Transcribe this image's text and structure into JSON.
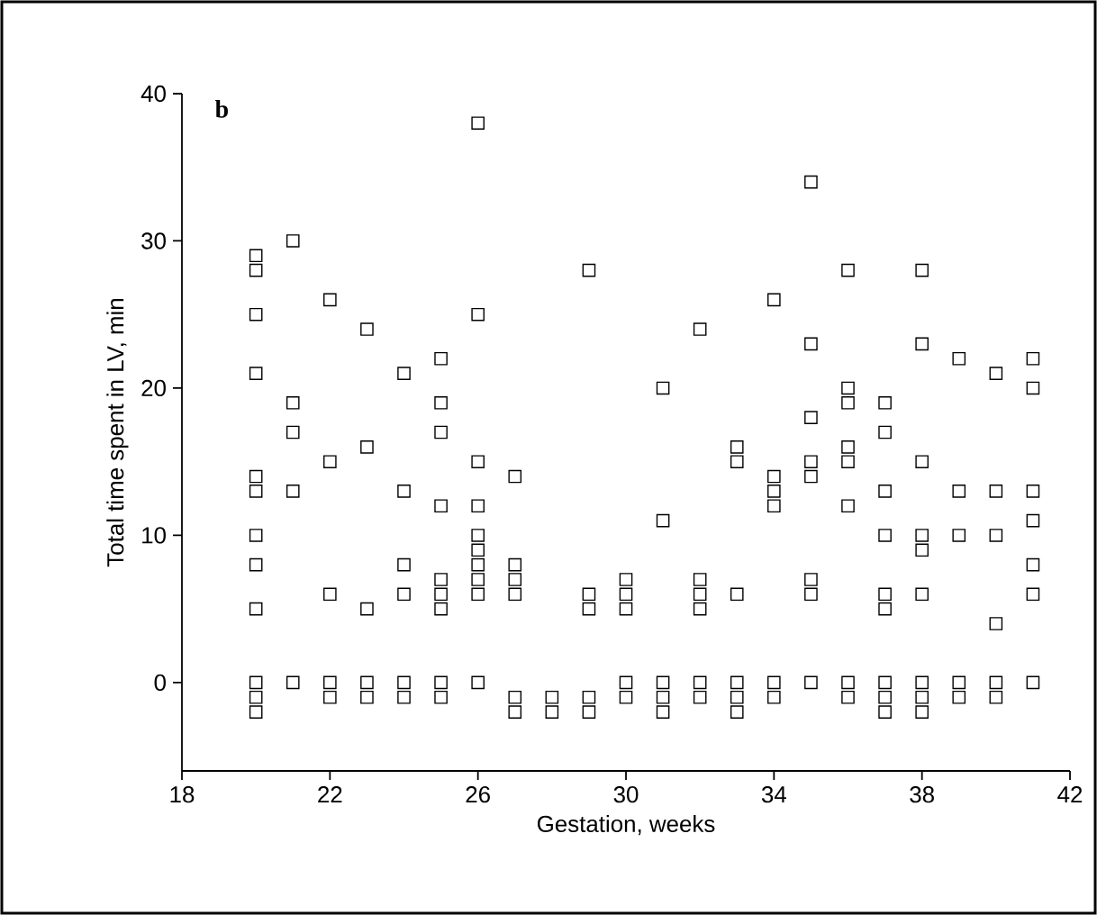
{
  "chart_data": {
    "type": "scatter",
    "xlabel": "Gestation, weeks",
    "ylabel": "Total time spent in LV, min",
    "annotations": [
      "b"
    ],
    "x": [
      20,
      20,
      20,
      20,
      20,
      20,
      20,
      20,
      20,
      20,
      20,
      20,
      21,
      21,
      21,
      21,
      21,
      22,
      22,
      22,
      22,
      22,
      23,
      23,
      23,
      23,
      23,
      24,
      24,
      24,
      24,
      24,
      24,
      25,
      25,
      25,
      25,
      25,
      25,
      25,
      25,
      25,
      26,
      26,
      26,
      26,
      26,
      26,
      26,
      26,
      26,
      26,
      27,
      27,
      27,
      27,
      27,
      27,
      28,
      28,
      29,
      29,
      29,
      29,
      29,
      30,
      30,
      30,
      30,
      30,
      31,
      31,
      31,
      31,
      31,
      32,
      32,
      32,
      32,
      32,
      32,
      33,
      33,
      33,
      33,
      33,
      33,
      34,
      34,
      34,
      34,
      34,
      34,
      35,
      35,
      35,
      35,
      35,
      35,
      35,
      35,
      36,
      36,
      36,
      36,
      36,
      36,
      36,
      36,
      37,
      37,
      37,
      37,
      37,
      37,
      37,
      37,
      37,
      38,
      38,
      38,
      38,
      38,
      38,
      38,
      38,
      38,
      39,
      39,
      39,
      39,
      39,
      40,
      40,
      40,
      40,
      40,
      40,
      41,
      41,
      41,
      41,
      41,
      41,
      41
    ],
    "values": [
      29,
      28,
      25,
      21,
      14,
      13,
      10,
      8,
      5,
      0,
      -1,
      -2,
      30,
      19,
      17,
      13,
      0,
      26,
      15,
      6,
      0,
      -1,
      24,
      16,
      5,
      0,
      -1,
      21,
      13,
      8,
      6,
      0,
      -1,
      22,
      19,
      17,
      12,
      7,
      6,
      5,
      0,
      -1,
      38,
      25,
      15,
      12,
      10,
      9,
      8,
      7,
      6,
      0,
      14,
      8,
      7,
      6,
      -1,
      -2,
      -1,
      -2,
      28,
      6,
      5,
      -1,
      -2,
      7,
      6,
      5,
      0,
      -1,
      20,
      11,
      0,
      -1,
      -2,
      24,
      7,
      6,
      5,
      0,
      -1,
      16,
      15,
      6,
      0,
      -1,
      -2,
      26,
      14,
      13,
      12,
      0,
      -1,
      34,
      23,
      18,
      15,
      14,
      7,
      6,
      0,
      28,
      20,
      19,
      16,
      15,
      12,
      0,
      -1,
      19,
      17,
      13,
      10,
      6,
      5,
      0,
      -1,
      -2,
      28,
      23,
      15,
      10,
      9,
      6,
      0,
      -1,
      -2,
      22,
      13,
      10,
      0,
      -1,
      21,
      13,
      10,
      4,
      0,
      -1,
      22,
      20,
      13,
      11,
      8,
      6,
      0
    ],
    "color": "#000000",
    "marker": "square",
    "xlim": [
      18,
      42
    ],
    "xticks": [
      18,
      22,
      26,
      30,
      34,
      38,
      42
    ],
    "ylim": [
      -6,
      40
    ],
    "yticks": [
      0,
      10,
      20,
      30,
      40
    ]
  }
}
